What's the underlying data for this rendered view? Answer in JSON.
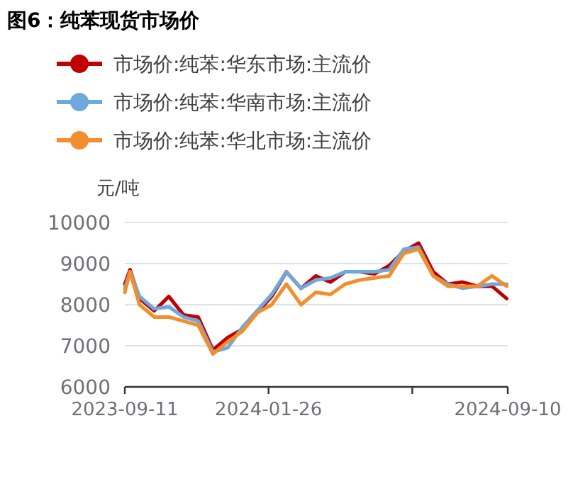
{
  "chart_data": {
    "type": "line",
    "title": "图6：纯苯现货市场价",
    "ylabel": "元/吨",
    "x": [
      "2023-09-11",
      "2023-09-16",
      "2023-09-25",
      "2023-10-09",
      "2023-10-23",
      "2023-11-06",
      "2023-11-20",
      "2023-12-04",
      "2023-12-18",
      "2024-01-01",
      "2024-01-15",
      "2024-01-29",
      "2024-02-12",
      "2024-02-26",
      "2024-03-11",
      "2024-03-25",
      "2024-04-08",
      "2024-04-22",
      "2024-05-06",
      "2024-05-20",
      "2024-06-03",
      "2024-06-17",
      "2024-07-01",
      "2024-07-15",
      "2024-07-29",
      "2024-08-12",
      "2024-08-26",
      "2024-09-09"
    ],
    "series": [
      {
        "name": "市场价:纯苯:华东市场:主流价",
        "color": "#c00000",
        "values": [
          8500,
          8850,
          8150,
          7850,
          8200,
          7750,
          7700,
          6900,
          7200,
          7400,
          7800,
          8200,
          8800,
          8400,
          8700,
          8550,
          8800,
          8800,
          8750,
          8950,
          9300,
          9500,
          8800,
          8500,
          8550,
          8450,
          8450,
          8150
        ]
      },
      {
        "name": "市场价:纯苯:华南市场:主流价",
        "color": "#6fa8dc",
        "values": [
          8400,
          8800,
          8200,
          7900,
          7950,
          7700,
          7600,
          6850,
          6950,
          7450,
          7850,
          8250,
          8800,
          8400,
          8600,
          8650,
          8800,
          8800,
          8800,
          8850,
          9350,
          9400,
          8700,
          8500,
          8400,
          8450,
          8500,
          8500
        ]
      },
      {
        "name": "市场价:纯苯:华北市场:主流价",
        "color": "#f28e2b",
        "values": [
          8300,
          8800,
          8000,
          7700,
          7700,
          7600,
          7500,
          6800,
          7100,
          7350,
          7800,
          8000,
          8500,
          8000,
          8300,
          8250,
          8500,
          8600,
          8650,
          8700,
          9250,
          9350,
          8700,
          8450,
          8450,
          8450,
          8700,
          8450
        ]
      }
    ],
    "xlim": [
      "2023-09-11",
      "2024-09-10"
    ],
    "xticks": [
      {
        "value": "2023-09-11",
        "label": "2023-09-11"
      },
      {
        "value": "2024-01-26",
        "label": "2024-01-26"
      },
      {
        "value": "2024-06-11",
        "label": null
      },
      {
        "value": "2024-09-10",
        "label": "2024-09-10"
      }
    ],
    "ylim": [
      6000,
      10000
    ],
    "yticks": [
      6000,
      7000,
      8000,
      9000,
      10000
    ],
    "grid": "y",
    "legend": "top",
    "marker": "none",
    "line_style": "solid"
  }
}
